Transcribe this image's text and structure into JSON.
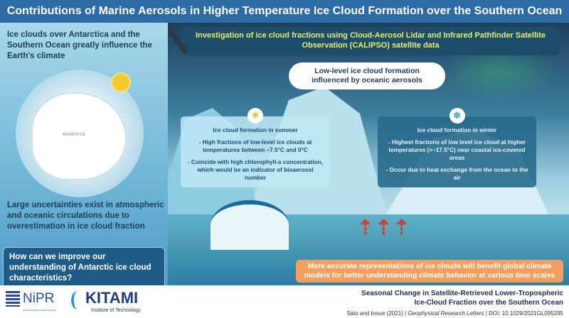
{
  "title": "Contributions of Marine Aerosols in Higher Temperature Ice Cloud Formation over the Southern Ocean",
  "left": {
    "intro": "Ice clouds over Antarctica and the Southern Ocean greatly influence the Earth's climate",
    "map_label": "ANTARCTICA",
    "uncertainty": "Large uncertainties exist in atmospheric and oceanic circulations due to overestimation in ice cloud fraction",
    "question": "How can we improve our understanding of Antarctic ice cloud characteristics?"
  },
  "main": {
    "investigation": "Investigation of ice cloud fractions using Cloud-Aerosol Lidar and Infrared Pathfinder Satellite Observation (CALIPSO) satellite data",
    "cloud_label": "Low-level ice cloud formation influenced by oceanic aerosols",
    "summer": {
      "icon": "sun-icon",
      "heading": "Ice cloud formation in summer",
      "points": [
        "- High fractions of low-level ice clouds at temperatures between −7.5°C and 0°C",
        "- Coincide with high chlorophyll-a concentration, which would be an indicator of bioaerosol number"
      ]
    },
    "winter": {
      "icon": "snowflake-icon",
      "heading": "Ice cloud formation in winter",
      "points": [
        "- Highest fractions of low level ice cloud at higher temperatures (>−17.5°C) near coastal ice-covered areas",
        "- Occur due to heat exchange from the ocean to the air"
      ]
    },
    "conclusion": "More accurate representations of ice clouds will benefit global climate models for better understanding climate behavior at various time scales"
  },
  "footer": {
    "logo1": "NiPR",
    "logo1_sub": "National Institute of Polar Research",
    "logo2": "KITAMI",
    "logo2_sub": "Institute of Technology",
    "paper_title_1": "Seasonal Change in Satellite-Retrieved Lower-Tropospheric",
    "paper_title_2": "Ice-Cloud Fraction over the Southern Ocean",
    "authors": "Sato and Inoue (2021) | ",
    "journal": "Geophysical Research Letters",
    "doi": " | DOI: 10.1029/2021GL095295"
  },
  "colors": {
    "title_bar": "#2e6aa3",
    "question_box": "#1e5c86",
    "conclusion_box": "#f1a060",
    "investigation_text": "#e8ee6a",
    "heat_arrows": "#d83a2f"
  }
}
